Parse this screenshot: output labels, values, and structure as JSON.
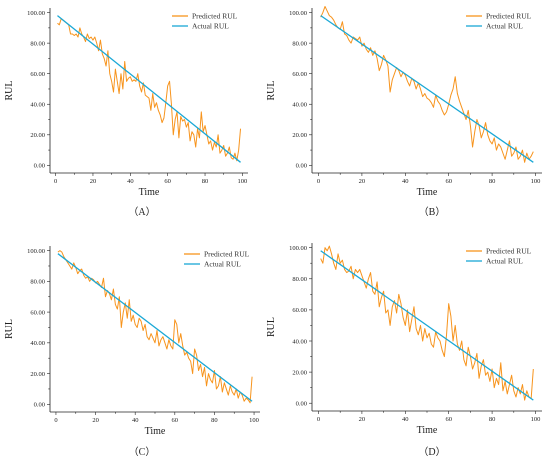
{
  "figure": {
    "colors": {
      "predicted": "#f7941d",
      "actual": "#1aa8d6",
      "axis": "#222222"
    }
  },
  "chart_data": [
    {
      "type": "line",
      "panel_label": "（A）",
      "xlabel": "Time",
      "ylabel": "RUL",
      "xlim": [
        -3,
        103
      ],
      "ylim": [
        -5,
        103
      ],
      "x_ticks": [
        0,
        20,
        40,
        60,
        80,
        100
      ],
      "y_ticks": [
        "0.00",
        "20.00",
        "40.00",
        "60.00",
        "80.00",
        "100.00"
      ],
      "legend_position": "top-right",
      "series": [
        {
          "name": "Predicted RUL",
          "x": [
            1,
            2,
            3,
            4,
            5,
            6,
            7,
            8,
            9,
            10,
            11,
            12,
            13,
            14,
            15,
            16,
            17,
            18,
            19,
            20,
            21,
            22,
            23,
            24,
            25,
            26,
            27,
            28,
            29,
            30,
            31,
            32,
            33,
            34,
            35,
            36,
            37,
            38,
            39,
            40,
            41,
            42,
            43,
            44,
            45,
            46,
            47,
            48,
            49,
            50,
            51,
            52,
            53,
            54,
            55,
            56,
            57,
            58,
            59,
            60,
            61,
            62,
            63,
            64,
            65,
            66,
            67,
            68,
            69,
            70,
            71,
            72,
            73,
            74,
            75,
            76,
            77,
            78,
            79,
            80,
            81,
            82,
            83,
            84,
            85,
            86,
            87,
            88,
            89,
            90,
            91,
            92,
            93,
            94,
            95,
            96,
            97,
            98,
            99
          ],
          "y": [
            93,
            92,
            96,
            95,
            94,
            93,
            92,
            86,
            86,
            85,
            86,
            84,
            90,
            86,
            84,
            81,
            86,
            83,
            84,
            82,
            84,
            80,
            75,
            82,
            73,
            70,
            65,
            75,
            60,
            55,
            48,
            63,
            55,
            47,
            60,
            50,
            68,
            55,
            57,
            58,
            55,
            56,
            55,
            60,
            52,
            48,
            54,
            46,
            45,
            44,
            36,
            47,
            38,
            41,
            36,
            33,
            28,
            31,
            41,
            52,
            55,
            40,
            20,
            30,
            35,
            18,
            32,
            29,
            30,
            25,
            28,
            16,
            22,
            20,
            12,
            24,
            18,
            35,
            22,
            26,
            20,
            14,
            16,
            10,
            15,
            12,
            20,
            8,
            10,
            13,
            6,
            8,
            12,
            5,
            4,
            8,
            3,
            10,
            24
          ]
        },
        {
          "name": "Actual RUL",
          "x": [
            1,
            99
          ],
          "y": [
            98,
            2
          ]
        }
      ]
    },
    {
      "type": "line",
      "panel_label": "（B）",
      "xlabel": "Time",
      "ylabel": "RUL",
      "xlim": [
        -3,
        103
      ],
      "ylim": [
        -5,
        103
      ],
      "x_ticks": [
        0,
        20,
        40,
        60,
        80,
        100
      ],
      "y_ticks": [
        "0.00",
        "20.00",
        "40.00",
        "60.00",
        "80.00",
        "100.00"
      ],
      "legend_position": "top-right",
      "series": [
        {
          "name": "Predicted RUL",
          "x": [
            1,
            2,
            3,
            4,
            5,
            6,
            7,
            8,
            9,
            10,
            11,
            12,
            13,
            14,
            15,
            16,
            17,
            18,
            19,
            20,
            21,
            22,
            23,
            24,
            25,
            26,
            27,
            28,
            29,
            30,
            31,
            32,
            33,
            34,
            35,
            36,
            37,
            38,
            39,
            40,
            41,
            42,
            43,
            44,
            45,
            46,
            47,
            48,
            49,
            50,
            51,
            52,
            53,
            54,
            55,
            56,
            57,
            58,
            59,
            60,
            61,
            62,
            63,
            64,
            65,
            66,
            67,
            68,
            69,
            70,
            71,
            72,
            73,
            74,
            75,
            76,
            77,
            78,
            79,
            80,
            81,
            82,
            83,
            84,
            85,
            86,
            87,
            88,
            89,
            90,
            91,
            92,
            93,
            94,
            95,
            96,
            97,
            98,
            99
          ],
          "y": [
            97,
            100,
            104,
            101,
            98,
            97,
            95,
            92,
            90,
            89,
            94,
            86,
            85,
            82,
            80,
            84,
            83,
            82,
            84,
            78,
            80,
            76,
            74,
            77,
            72,
            75,
            70,
            62,
            66,
            72,
            69,
            65,
            48,
            56,
            60,
            64,
            62,
            58,
            61,
            59,
            55,
            52,
            57,
            55,
            50,
            54,
            50,
            45,
            47,
            44,
            43,
            41,
            38,
            46,
            42,
            40,
            36,
            33,
            35,
            40,
            46,
            50,
            58,
            47,
            42,
            38,
            34,
            30,
            36,
            26,
            12,
            22,
            30,
            26,
            18,
            22,
            28,
            20,
            16,
            14,
            18,
            10,
            14,
            12,
            8,
            4,
            10,
            16,
            6,
            8,
            12,
            4,
            6,
            10,
            2,
            8,
            4,
            6,
            9
          ]
        },
        {
          "name": "Actual RUL",
          "x": [
            1,
            99
          ],
          "y": [
            98,
            2
          ]
        }
      ]
    },
    {
      "type": "line",
      "panel_label": "（C）",
      "xlabel": "Time",
      "ylabel": "RUL",
      "xlim": [
        -3,
        103
      ],
      "ylim": [
        -5,
        103
      ],
      "x_ticks": [
        0,
        20,
        40,
        60,
        80,
        100
      ],
      "y_ticks": [
        "0.00",
        "20.00",
        "40.00",
        "60.00",
        "80.00",
        "100.00"
      ],
      "legend_position": "top-right",
      "series": [
        {
          "name": "Predicted RUL",
          "x": [
            1,
            2,
            3,
            4,
            5,
            6,
            7,
            8,
            9,
            10,
            11,
            12,
            13,
            14,
            15,
            16,
            17,
            18,
            19,
            20,
            21,
            22,
            23,
            24,
            25,
            26,
            27,
            28,
            29,
            30,
            31,
            32,
            33,
            34,
            35,
            36,
            37,
            38,
            39,
            40,
            41,
            42,
            43,
            44,
            45,
            46,
            47,
            48,
            49,
            50,
            51,
            52,
            53,
            54,
            55,
            56,
            57,
            58,
            59,
            60,
            61,
            62,
            63,
            64,
            65,
            66,
            67,
            68,
            69,
            70,
            71,
            72,
            73,
            74,
            75,
            76,
            77,
            78,
            79,
            80,
            81,
            82,
            83,
            84,
            85,
            86,
            87,
            88,
            89,
            90,
            91,
            92,
            93,
            94,
            95,
            96,
            97,
            98,
            99
          ],
          "y": [
            99,
            100,
            99,
            96,
            94,
            92,
            90,
            88,
            92,
            89,
            85,
            87,
            88,
            84,
            82,
            83,
            80,
            82,
            81,
            79,
            80,
            78,
            76,
            82,
            70,
            74,
            72,
            68,
            75,
            65,
            62,
            70,
            50,
            60,
            66,
            56,
            68,
            54,
            58,
            52,
            50,
            56,
            54,
            48,
            52,
            44,
            42,
            46,
            43,
            40,
            48,
            38,
            42,
            44,
            40,
            36,
            42,
            38,
            36,
            55,
            52,
            40,
            46,
            38,
            32,
            34,
            30,
            28,
            20,
            36,
            32,
            22,
            26,
            18,
            24,
            12,
            20,
            16,
            14,
            22,
            10,
            12,
            18,
            8,
            14,
            10,
            6,
            12,
            8,
            6,
            10,
            4,
            8,
            6,
            2,
            4,
            3,
            1,
            18
          ]
        },
        {
          "name": "Actual RUL",
          "x": [
            1,
            99
          ],
          "y": [
            98,
            2
          ]
        }
      ]
    },
    {
      "type": "line",
      "panel_label": "（D）",
      "xlabel": "Time",
      "ylabel": "RUL",
      "xlim": [
        -3,
        103
      ],
      "ylim": [
        -5,
        103
      ],
      "x_ticks": [
        0,
        20,
        40,
        60,
        80,
        100
      ],
      "y_ticks": [
        "0.00",
        "20.00",
        "40.00",
        "60.00",
        "80.00",
        "100.00"
      ],
      "legend_position": "top-right",
      "series": [
        {
          "name": "Predicted RUL",
          "x": [
            1,
            2,
            3,
            4,
            5,
            6,
            7,
            8,
            9,
            10,
            11,
            12,
            13,
            14,
            15,
            16,
            17,
            18,
            19,
            20,
            21,
            22,
            23,
            24,
            25,
            26,
            27,
            28,
            29,
            30,
            31,
            32,
            33,
            34,
            35,
            36,
            37,
            38,
            39,
            40,
            41,
            42,
            43,
            44,
            45,
            46,
            47,
            48,
            49,
            50,
            51,
            52,
            53,
            54,
            55,
            56,
            57,
            58,
            59,
            60,
            61,
            62,
            63,
            64,
            65,
            66,
            67,
            68,
            69,
            70,
            71,
            72,
            73,
            74,
            75,
            76,
            77,
            78,
            79,
            80,
            81,
            82,
            83,
            84,
            85,
            86,
            87,
            88,
            89,
            90,
            91,
            92,
            93,
            94,
            95,
            96,
            97,
            98,
            99
          ],
          "y": [
            93,
            90,
            100,
            98,
            101,
            96,
            90,
            86,
            96,
            90,
            92,
            86,
            84,
            85,
            88,
            80,
            86,
            84,
            86,
            82,
            78,
            74,
            80,
            84,
            72,
            70,
            78,
            62,
            68,
            72,
            58,
            60,
            50,
            62,
            66,
            58,
            70,
            64,
            55,
            50,
            60,
            46,
            54,
            62,
            48,
            44,
            50,
            40,
            48,
            42,
            45,
            38,
            36,
            46,
            42,
            40,
            34,
            30,
            44,
            64,
            56,
            40,
            50,
            38,
            34,
            40,
            28,
            24,
            36,
            30,
            22,
            26,
            32,
            16,
            24,
            28,
            18,
            20,
            14,
            22,
            10,
            16,
            12,
            26,
            8,
            14,
            6,
            12,
            18,
            8,
            4,
            10,
            6,
            12,
            2,
            8,
            4,
            3,
            22
          ]
        },
        {
          "name": "Actual RUL",
          "x": [
            1,
            99
          ],
          "y": [
            98,
            2
          ]
        }
      ]
    }
  ]
}
